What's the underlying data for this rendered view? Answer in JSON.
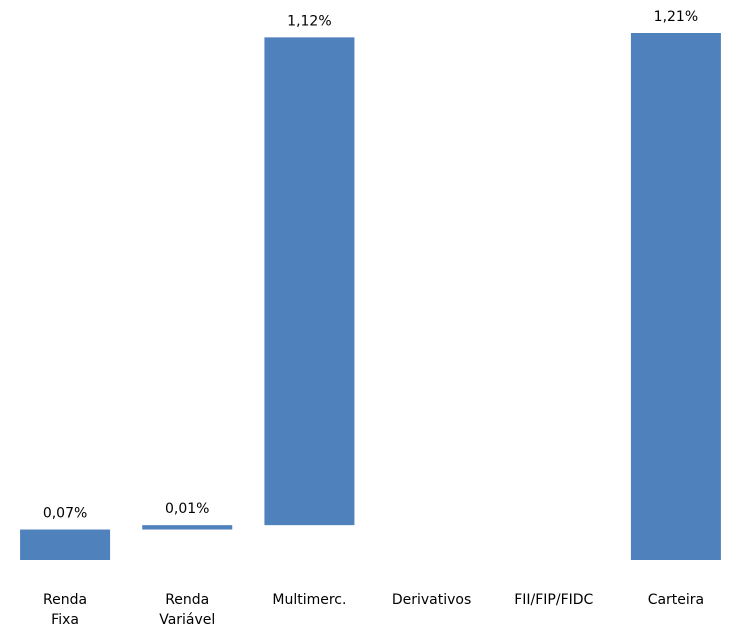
{
  "chart_data": {
    "type": "waterfall",
    "categories": [
      "Renda Fixa",
      "Renda Variável",
      "Multimerc.",
      "Derivativos",
      "FII/FIP/FIDC",
      "Carteira"
    ],
    "values": [
      0.07,
      0.01,
      1.12,
      null,
      null,
      1.21
    ],
    "value_labels": [
      "0,07%",
      "0,01%",
      "1,12%",
      null,
      null,
      "1,21%"
    ],
    "measures": [
      "relative",
      "relative",
      "relative",
      "relative",
      "relative",
      "total"
    ],
    "color": "#4f81bd"
  }
}
